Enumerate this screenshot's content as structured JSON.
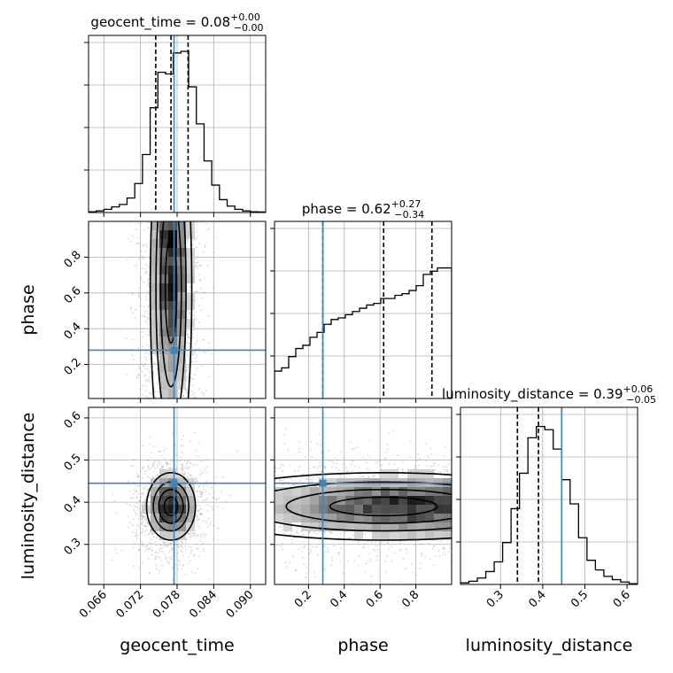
{
  "chart_data": {
    "type": "corner",
    "truth_color": "#4682b4",
    "parameters": [
      {
        "key": "geocent_time",
        "label": "geocent_time",
        "truth": 0.0775,
        "quantiles": [
          0.0745,
          0.077,
          0.0798
        ],
        "range": [
          0.0635,
          0.0925
        ],
        "ticks": [
          0.066,
          0.072,
          0.078,
          0.084,
          0.09
        ],
        "tick_labels": [
          "0.066",
          "0.072",
          "0.078",
          "0.084",
          "0.090"
        ]
      },
      {
        "key": "phase",
        "label": "phase",
        "truth": 0.28,
        "quantiles": [
          0.28,
          0.62,
          0.89
        ],
        "range": [
          0.01,
          1.0
        ],
        "ticks": [
          0.2,
          0.4,
          0.6,
          0.8
        ],
        "tick_labels": [
          "0.2",
          "0.4",
          "0.6",
          "0.8"
        ]
      },
      {
        "key": "luminosity_distance",
        "label": "luminosity_distance",
        "truth": 0.445,
        "quantiles": [
          0.34,
          0.39,
          0.445
        ],
        "range": [
          0.205,
          0.625
        ],
        "ticks": [
          0.3,
          0.4,
          0.5,
          0.6
        ],
        "tick_labels": [
          "0.3",
          "0.4",
          "0.5",
          "0.6"
        ]
      }
    ],
    "titles": [
      {
        "name": "geocent_time",
        "value": "0.08",
        "plus": "+0.00",
        "minus": "−0.00"
      },
      {
        "name": "phase",
        "value": "0.62",
        "plus": "+0.27",
        "minus": "−0.34"
      },
      {
        "name": "luminosity_distance",
        "value": "0.39",
        "plus": "+0.06",
        "minus": "−0.05"
      }
    ],
    "histograms": {
      "geocent_time": [
        0.5,
        1,
        2,
        3.5,
        5,
        9,
        18,
        36,
        65,
        87,
        86,
        99,
        100,
        78,
        55,
        32,
        17,
        8,
        4,
        2,
        1,
        0.5,
        0.3
      ],
      "phase": [
        17,
        19,
        26,
        31,
        33,
        38,
        41,
        46,
        49,
        50,
        52,
        54,
        56,
        58,
        59,
        62,
        62,
        64,
        65,
        67,
        70,
        77,
        79,
        81,
        81
      ],
      "luminosity_distance": [
        1,
        2,
        4,
        8,
        14,
        26,
        47,
        69,
        91,
        98,
        96,
        84,
        65,
        50,
        29,
        15,
        9,
        5,
        3,
        1.5,
        0.5
      ]
    },
    "contour_levels": [
      "0.118",
      "0.393",
      "0.675",
      "0.865"
    ],
    "grid": true
  }
}
